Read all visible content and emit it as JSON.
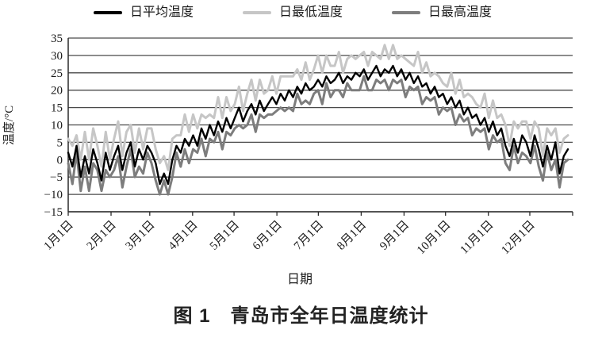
{
  "legend": {
    "items": [
      {
        "label": "日平均温度",
        "color": "#000000"
      },
      {
        "label": "日最低温度",
        "color": "#c6c6c6"
      },
      {
        "label": "日最高温度",
        "color": "#7d7d7d"
      }
    ]
  },
  "caption": "图 1　青岛市全年日温度统计",
  "chart_data": {
    "type": "line",
    "title": "青岛市全年日温度统计",
    "xlabel": "日期",
    "ylabel": "温度/°C",
    "ylim": [
      -15,
      35
    ],
    "ytick_step": 5,
    "yticks": [
      35,
      30,
      25,
      20,
      15,
      10,
      5,
      0,
      -5,
      -10,
      -15
    ],
    "ytick_labels": [
      "35",
      "30",
      "25",
      "20",
      "15",
      "10",
      "5",
      "0",
      "−5",
      "−10",
      "−15"
    ],
    "xtick_labels": [
      "1月1日",
      "2月1日",
      "3月1日",
      "4月1日",
      "5月1日",
      "6月1日",
      "7月1日",
      "8月1日",
      "9月1日",
      "10月1日",
      "11月1日",
      "12月1日"
    ],
    "xtick_days": [
      0,
      31,
      59,
      90,
      120,
      151,
      181,
      212,
      243,
      273,
      304,
      334,
      365
    ],
    "days_total": 365,
    "grid": true,
    "grid_color": "#4a4a4a",
    "axis_color": "#2a2a2a",
    "legend_position": "top",
    "series": [
      {
        "name": "日平均温度",
        "color": "#000000",
        "width": 2.4,
        "values": [
          2,
          -2,
          4,
          -5,
          1,
          -4,
          3,
          -1,
          -6,
          2,
          -3,
          1,
          4,
          -3,
          2,
          5,
          -2,
          3,
          0,
          4,
          2,
          -1,
          -7,
          -4,
          -7,
          0,
          4,
          2,
          6,
          4,
          7,
          4,
          9,
          6,
          10,
          7,
          11,
          8,
          12,
          9,
          12,
          15,
          11,
          14,
          16,
          13,
          17,
          14,
          16,
          18,
          16,
          19,
          17,
          20,
          18,
          21,
          19,
          22,
          20,
          21,
          23,
          21,
          24,
          22,
          23,
          25,
          22,
          24,
          23,
          25,
          24,
          26,
          23,
          25,
          27,
          24,
          26,
          25,
          27,
          24,
          26,
          23,
          25,
          22,
          24,
          21,
          22,
          19,
          21,
          18,
          19,
          16,
          18,
          15,
          17,
          13,
          15,
          12,
          13,
          10,
          12,
          8,
          11,
          7,
          9,
          4,
          1,
          6,
          2,
          7,
          5,
          1,
          7,
          3,
          -2,
          4,
          0,
          5,
          -4,
          1,
          3
        ]
      },
      {
        "name": "日最低温度",
        "color": "#c6c6c6",
        "width": 3,
        "values": [
          6,
          4,
          7,
          0,
          8,
          0,
          9,
          4,
          -2,
          8,
          0,
          6,
          11,
          1,
          8,
          10,
          2,
          9,
          3,
          9,
          9,
          3,
          -1,
          1,
          -3,
          6,
          7,
          7,
          13,
          8,
          13,
          9,
          13,
          12,
          13,
          12,
          18,
          12,
          18,
          14,
          16,
          21,
          14,
          19,
          23,
          17,
          23,
          19,
          20,
          24,
          19,
          24,
          24,
          24,
          24,
          26,
          23,
          28,
          23,
          26,
          30,
          25,
          30,
          27,
          27,
          31,
          25,
          29,
          30,
          29,
          30,
          31,
          27,
          31,
          30,
          29,
          33,
          29,
          33,
          29,
          30,
          29,
          28,
          27,
          31,
          25,
          28,
          24,
          25,
          24,
          22,
          21,
          25,
          19,
          23,
          18,
          19,
          18,
          16,
          15,
          19,
          12,
          17,
          12,
          13,
          10,
          4,
          11,
          9,
          11,
          11,
          6,
          11,
          9,
          1,
          9,
          7,
          9,
          2,
          6,
          7
        ]
      },
      {
        "name": "日最高温度",
        "color": "#7d7d7d",
        "width": 3,
        "values": [
          -1,
          -7,
          2,
          -9,
          -2,
          -9,
          -1,
          -3,
          -9,
          -3,
          -5,
          -3,
          1,
          -8,
          -2,
          3,
          -5,
          -2,
          -4,
          2,
          -1,
          -6,
          -10,
          -6,
          -10,
          -5,
          2,
          -2,
          3,
          -1,
          3,
          2,
          6,
          1,
          6,
          5,
          8,
          3,
          8,
          7,
          9,
          10,
          9,
          10,
          13,
          8,
          13,
          12,
          13,
          13,
          14,
          15,
          14,
          15,
          14,
          19,
          16,
          17,
          16,
          19,
          20,
          16,
          22,
          18,
          20,
          20,
          18,
          22,
          20,
          20,
          20,
          24,
          20,
          20,
          23,
          22,
          23,
          20,
          23,
          22,
          23,
          18,
          21,
          20,
          21,
          16,
          18,
          17,
          18,
          13,
          15,
          14,
          15,
          10,
          13,
          11,
          12,
          7,
          9,
          8,
          9,
          3,
          7,
          5,
          6,
          -1,
          -3,
          4,
          -1,
          2,
          1,
          -1,
          4,
          -2,
          -6,
          2,
          -3,
          0,
          -8,
          -1,
          0
        ]
      }
    ]
  }
}
